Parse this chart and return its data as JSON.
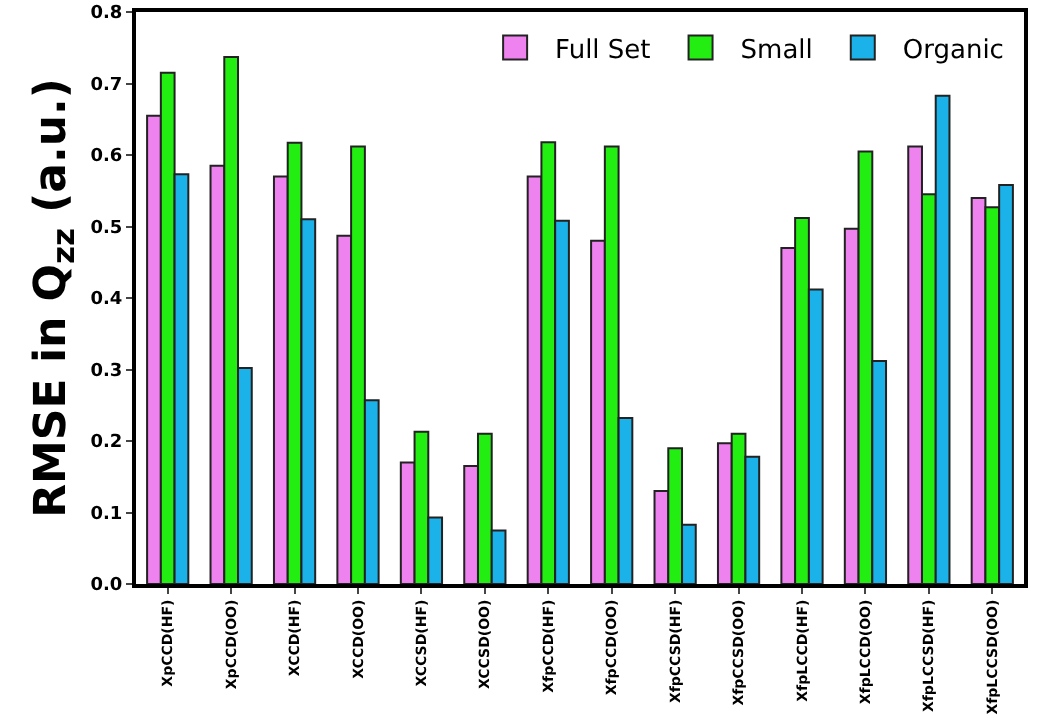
{
  "chart_data": {
    "type": "bar",
    "ylabel": "RMSE in Q$_{zz}$ (a.u.)",
    "categories": [
      "XpCCD(HF)",
      "XpCCD(OO)",
      "XCCD(HF)",
      "XCCD(OO)",
      "XCCSD(HF)",
      "XCCSD(OO)",
      "XfpCCD(HF)",
      "XfpCCD(OO)",
      "XfpCCSD(HF)",
      "XfpCCSD(OO)",
      "XfpLCCD(HF)",
      "XfpLCCD(OO)",
      "XfpLCCSD(HF)",
      "XfpLCCSD(OO)"
    ],
    "series": [
      {
        "name": "Full Set",
        "color": "#ee82ee",
        "values": [
          0.655,
          0.585,
          0.57,
          0.487,
          0.17,
          0.165,
          0.57,
          0.48,
          0.13,
          0.197,
          0.47,
          0.497,
          0.612,
          0.54
        ]
      },
      {
        "name": "Small",
        "color": "#22ee11",
        "values": [
          0.715,
          0.737,
          0.617,
          0.612,
          0.213,
          0.21,
          0.618,
          0.612,
          0.19,
          0.21,
          0.512,
          0.605,
          0.545,
          0.527
        ]
      },
      {
        "name": "Organic",
        "color": "#1ab2e8",
        "values": [
          0.573,
          0.302,
          0.51,
          0.257,
          0.093,
          0.075,
          0.508,
          0.232,
          0.083,
          0.178,
          0.412,
          0.312,
          0.683,
          0.558
        ]
      }
    ],
    "ylim": [
      0,
      0.8
    ],
    "yticks": [
      {
        "value": 0,
        "label": "0.0"
      },
      0.1,
      0.2,
      0.3,
      0.4,
      0.5,
      0.6,
      0.7,
      0.8
    ],
    "grid": false,
    "legend": "top right"
  }
}
